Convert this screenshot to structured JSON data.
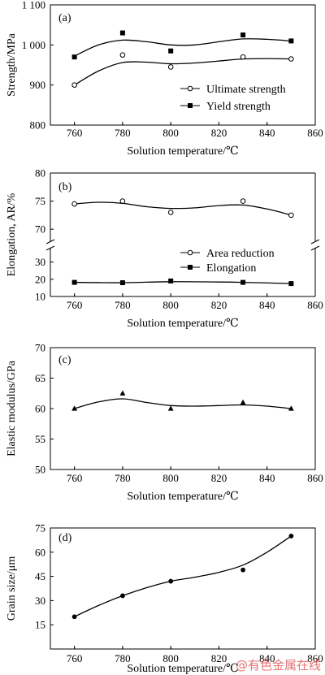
{
  "watermark": "@有色金属在线",
  "chart_data": [
    {
      "panel": "(a)",
      "type": "line",
      "x": [
        760,
        780,
        800,
        830,
        850
      ],
      "xlim": [
        750,
        860
      ],
      "xticks": [
        760,
        780,
        800,
        820,
        840,
        860
      ],
      "xlabel": "Solution temperature/℃",
      "ylabel": "Strength/MPa",
      "ylim": [
        800,
        1100
      ],
      "yticks": [
        800,
        900,
        1000,
        1100
      ],
      "ytick_labels": [
        "800",
        "900",
        "1 000",
        "1 100"
      ],
      "series": [
        {
          "name": "Ultimate strength",
          "marker": "open-circle",
          "values": [
            900,
            975,
            945,
            970,
            965
          ],
          "curve": [
            [
              760,
              900
            ],
            [
              770,
              935
            ],
            [
              780,
              956
            ],
            [
              790,
              957
            ],
            [
              800,
              953
            ],
            [
              810,
              955
            ],
            [
              820,
              960
            ],
            [
              830,
              965
            ],
            [
              840,
              966
            ],
            [
              850,
              965
            ]
          ]
        },
        {
          "name": "Yield strength",
          "marker": "filled-square",
          "values": [
            970,
            1030,
            985,
            1025,
            1010
          ],
          "curve": [
            [
              760,
              972
            ],
            [
              770,
              1000
            ],
            [
              780,
              1012
            ],
            [
              790,
              1008
            ],
            [
              800,
              1000
            ],
            [
              810,
              1000
            ],
            [
              820,
              1008
            ],
            [
              830,
              1015
            ],
            [
              840,
              1014
            ],
            [
              850,
              1010
            ]
          ]
        }
      ],
      "legend": "right-middle"
    },
    {
      "panel": "(b)",
      "type": "line",
      "x": [
        760,
        780,
        800,
        830,
        850
      ],
      "xlim": [
        750,
        860
      ],
      "xticks": [
        760,
        780,
        800,
        820,
        840,
        860
      ],
      "xlabel": "Solution temperature/℃",
      "ylabel": "Elongation, AR/%",
      "broken_axis": true,
      "upper_ylim": [
        68,
        80
      ],
      "upper_yticks": [
        70,
        75,
        80
      ],
      "lower_ylim": [
        10,
        35
      ],
      "lower_yticks": [
        10,
        20,
        30
      ],
      "series": [
        {
          "name": "Area reduction",
          "marker": "open-circle",
          "values": [
            74.5,
            75.0,
            73.0,
            75.0,
            72.5
          ],
          "curve": [
            [
              760,
              74.5
            ],
            [
              770,
              74.8
            ],
            [
              780,
              74.6
            ],
            [
              790,
              74.0
            ],
            [
              800,
              73.7
            ],
            [
              810,
              73.8
            ],
            [
              820,
              74.2
            ],
            [
              830,
              74.3
            ],
            [
              840,
              73.6
            ],
            [
              850,
              72.5
            ]
          ]
        },
        {
          "name": "Elongation",
          "marker": "filled-square",
          "values": [
            18.2,
            18.0,
            19.0,
            18.2,
            17.5
          ],
          "curve": [
            [
              760,
              18.2
            ],
            [
              780,
              18.0
            ],
            [
              800,
              18.6
            ],
            [
              820,
              18.4
            ],
            [
              830,
              18.2
            ],
            [
              850,
              17.5
            ]
          ]
        }
      ],
      "legend": "right-middle"
    },
    {
      "panel": "(c)",
      "type": "line",
      "x": [
        760,
        780,
        800,
        830,
        850
      ],
      "xlim": [
        750,
        860
      ],
      "xticks": [
        760,
        780,
        800,
        820,
        840,
        860
      ],
      "xlabel": "Solution temperature/℃",
      "ylabel": "Elastic modulus/GPa",
      "ylim": [
        50,
        70
      ],
      "yticks": [
        50,
        55,
        60,
        65,
        70
      ],
      "series": [
        {
          "marker": "filled-triangle",
          "values": [
            60.0,
            62.5,
            60.0,
            61.0,
            60.0
          ],
          "curve": [
            [
              760,
              60.0
            ],
            [
              770,
              61.1
            ],
            [
              780,
              61.6
            ],
            [
              790,
              61.0
            ],
            [
              800,
              60.5
            ],
            [
              810,
              60.4
            ],
            [
              820,
              60.5
            ],
            [
              830,
              60.6
            ],
            [
              840,
              60.4
            ],
            [
              850,
              60.0
            ]
          ]
        }
      ]
    },
    {
      "panel": "(d)",
      "type": "line",
      "x": [
        760,
        780,
        800,
        830,
        850
      ],
      "xlim": [
        750,
        860
      ],
      "xticks": [
        760,
        780,
        800,
        820,
        840,
        860
      ],
      "xlabel": "Solution temperature/℃",
      "ylabel": "Grain size/μm",
      "ylim": [
        0,
        75
      ],
      "yticks": [
        15,
        30,
        45,
        60,
        75
      ],
      "series": [
        {
          "marker": "filled-circle",
          "values": [
            20,
            33,
            42,
            49,
            70
          ],
          "curve": [
            [
              760,
              20
            ],
            [
              770,
              27
            ],
            [
              780,
              33
            ],
            [
              790,
              38
            ],
            [
              800,
              42
            ],
            [
              810,
              44.5
            ],
            [
              820,
              47.5
            ],
            [
              830,
              52
            ],
            [
              840,
              60
            ],
            [
              850,
              70
            ]
          ]
        }
      ]
    }
  ]
}
